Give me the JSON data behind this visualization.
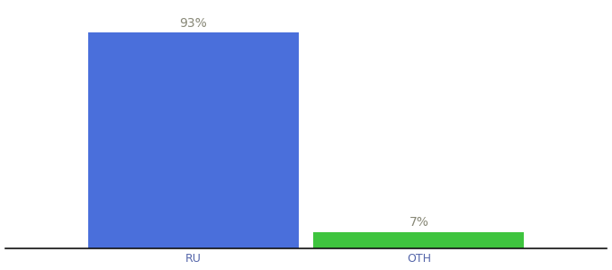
{
  "categories": [
    "RU",
    "OTH"
  ],
  "values": [
    93,
    7
  ],
  "bar_colors": [
    "#4a6fdb",
    "#3ec43e"
  ],
  "label_texts": [
    "93%",
    "7%"
  ],
  "background_color": "#ffffff",
  "text_color": "#888877",
  "label_fontsize": 10,
  "tick_fontsize": 9,
  "tick_color": "#5566aa",
  "ylim": [
    0,
    105
  ],
  "bar_width": 0.28,
  "x_positions": [
    0.35,
    0.65
  ],
  "xlim": [
    0.1,
    0.9
  ]
}
